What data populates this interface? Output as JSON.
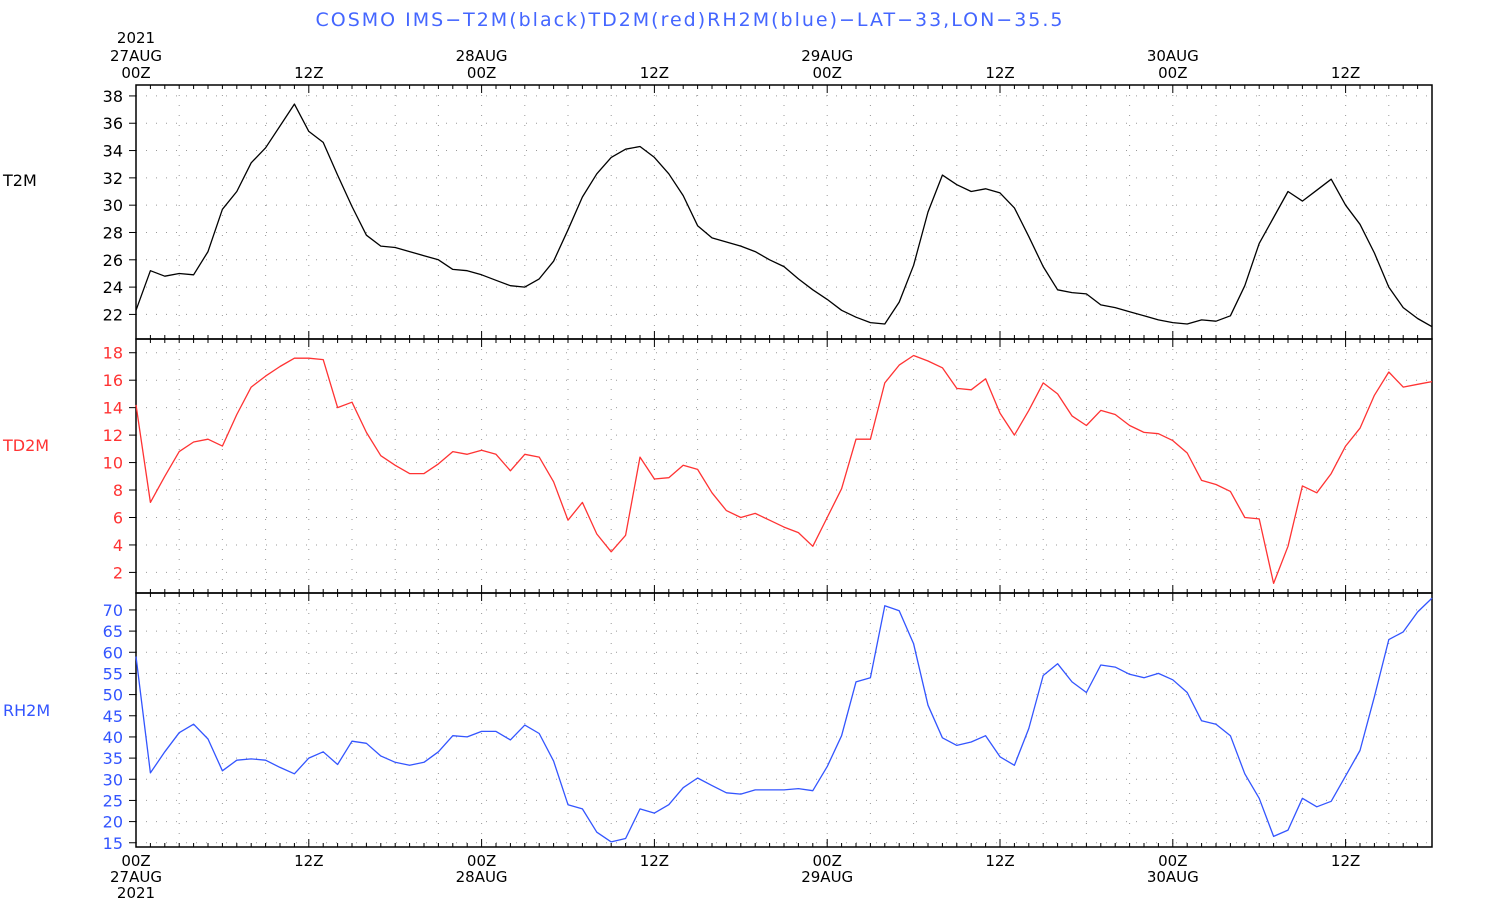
{
  "title": "COSMO IMS−T2M(black)TD2M(red)RH2M(blue)−LAT−33,LON−35.5",
  "colors": {
    "t2m": "#000000",
    "td2m": "#ff3333",
    "rh2m": "#3355ff",
    "title": "#4466ff",
    "grid": "#999999"
  },
  "top_axis": {
    "year_label": "2021",
    "ticks": [
      {
        "x": 0,
        "day": "27AUG",
        "hour": "00Z"
      },
      {
        "x": 12,
        "day": "",
        "hour": "12Z"
      },
      {
        "x": 24,
        "day": "28AUG",
        "hour": "00Z"
      },
      {
        "x": 36,
        "day": "",
        "hour": "12Z"
      },
      {
        "x": 48,
        "day": "29AUG",
        "hour": "00Z"
      },
      {
        "x": 60,
        "day": "",
        "hour": "12Z"
      },
      {
        "x": 72,
        "day": "30AUG",
        "hour": "00Z"
      },
      {
        "x": 84,
        "day": "",
        "hour": "12Z"
      }
    ]
  },
  "bottom_axis": {
    "year_label": "2021",
    "ticks": [
      {
        "x": 0,
        "hour": "00Z",
        "day": "27AUG"
      },
      {
        "x": 12,
        "hour": "12Z",
        "day": ""
      },
      {
        "x": 24,
        "hour": "00Z",
        "day": "28AUG"
      },
      {
        "x": 36,
        "hour": "12Z",
        "day": ""
      },
      {
        "x": 48,
        "hour": "00Z",
        "day": "29AUG"
      },
      {
        "x": 60,
        "hour": "12Z",
        "day": ""
      },
      {
        "x": 72,
        "hour": "00Z",
        "day": "30AUG"
      },
      {
        "x": 84,
        "hour": "12Z",
        "day": ""
      }
    ]
  },
  "chart_data": [
    {
      "type": "line",
      "name": "T2M",
      "ylabel": "T2M",
      "color": "#000000",
      "xlim": [
        0,
        90
      ],
      "ylim": [
        20.2,
        38.8
      ],
      "yticks": [
        22,
        24,
        26,
        28,
        30,
        32,
        34,
        36,
        38
      ],
      "grid": true,
      "x": [
        0,
        1,
        2,
        3,
        4,
        5,
        6,
        7,
        8,
        9,
        10,
        11,
        12,
        13,
        14,
        15,
        16,
        17,
        18,
        19,
        20,
        21,
        22,
        23,
        24,
        25,
        26,
        27,
        28,
        29,
        30,
        31,
        32,
        33,
        34,
        35,
        36,
        37,
        38,
        39,
        40,
        41,
        42,
        43,
        44,
        45,
        46,
        47,
        48,
        49,
        50,
        51,
        52,
        53,
        54,
        55,
        56,
        57,
        58,
        59,
        60,
        61,
        62,
        63,
        64,
        65,
        66,
        67,
        68,
        69,
        70,
        71,
        72,
        73,
        74,
        75,
        76,
        77,
        78,
        79,
        80,
        81,
        82,
        83,
        84,
        85,
        86,
        87,
        88,
        89,
        90
      ],
      "values": [
        22.3,
        25.2,
        24.8,
        25.0,
        24.9,
        26.6,
        29.7,
        31.0,
        33.1,
        34.2,
        35.8,
        37.4,
        35.4,
        34.6,
        32.2,
        29.9,
        27.8,
        27.0,
        26.9,
        26.6,
        26.3,
        26.0,
        25.3,
        25.2,
        24.9,
        24.5,
        24.1,
        24.0,
        24.6,
        25.9,
        28.2,
        30.6,
        32.3,
        33.5,
        34.1,
        34.3,
        33.5,
        32.3,
        30.7,
        28.5,
        27.6,
        27.3,
        27.0,
        26.6,
        26.0,
        25.5,
        24.6,
        23.8,
        23.1,
        22.3,
        21.8,
        21.4,
        21.3,
        22.9,
        25.6,
        29.5,
        32.2,
        31.5,
        31.0,
        31.2,
        30.9,
        29.8,
        27.7,
        25.5,
        23.8,
        23.6,
        23.5,
        22.7,
        22.5,
        22.2,
        21.9,
        21.6,
        21.4,
        21.3,
        21.6,
        21.5,
        21.9,
        24.1,
        27.2,
        29.1,
        31.0,
        30.3,
        31.1,
        31.9,
        30.0,
        28.6,
        26.5,
        24.0,
        22.5,
        21.7,
        21.1
      ]
    },
    {
      "type": "line",
      "name": "TD2M",
      "ylabel": "TD2M",
      "color": "#ff3333",
      "xlim": [
        0,
        90
      ],
      "ylim": [
        0.5,
        19.0
      ],
      "yticks": [
        2,
        4,
        6,
        8,
        10,
        12,
        14,
        16,
        18
      ],
      "grid": true,
      "x": [
        0,
        1,
        2,
        3,
        4,
        5,
        6,
        7,
        8,
        9,
        10,
        11,
        12,
        13,
        14,
        15,
        16,
        17,
        18,
        19,
        20,
        21,
        22,
        23,
        24,
        25,
        26,
        27,
        28,
        29,
        30,
        31,
        32,
        33,
        34,
        35,
        36,
        37,
        38,
        39,
        40,
        41,
        42,
        43,
        44,
        45,
        46,
        47,
        48,
        49,
        50,
        51,
        52,
        53,
        54,
        55,
        56,
        57,
        58,
        59,
        60,
        61,
        62,
        63,
        64,
        65,
        66,
        67,
        68,
        69,
        70,
        71,
        72,
        73,
        74,
        75,
        76,
        77,
        78,
        79,
        80,
        81,
        82,
        83,
        84,
        85,
        86,
        87,
        88,
        89,
        90
      ],
      "values": [
        14.2,
        7.1,
        9.0,
        10.8,
        11.5,
        11.7,
        11.2,
        13.5,
        15.5,
        16.3,
        17.0,
        17.6,
        17.6,
        17.5,
        14.0,
        14.4,
        12.2,
        10.5,
        9.8,
        9.2,
        9.2,
        9.9,
        10.8,
        10.6,
        10.9,
        10.6,
        9.4,
        10.6,
        10.4,
        8.6,
        5.8,
        7.1,
        4.8,
        3.5,
        4.7,
        10.4,
        8.8,
        8.9,
        9.8,
        9.5,
        7.8,
        6.5,
        6.0,
        6.3,
        5.8,
        5.3,
        4.9,
        3.9,
        6.0,
        8.1,
        11.7,
        11.7,
        15.8,
        17.1,
        17.8,
        17.4,
        16.9,
        15.4,
        15.3,
        16.1,
        13.6,
        12.0,
        13.8,
        15.8,
        15.0,
        13.4,
        12.7,
        13.8,
        13.5,
        12.7,
        12.2,
        12.1,
        11.6,
        10.7,
        8.7,
        8.4,
        7.9,
        6.0,
        5.9,
        1.2,
        3.9,
        8.3,
        7.8,
        9.2,
        11.2,
        12.5,
        14.9,
        16.6,
        15.5,
        15.7,
        15.9
      ]
    },
    {
      "type": "line",
      "name": "RH2M",
      "ylabel": "RH2M",
      "color": "#3355ff",
      "xlim": [
        0,
        90
      ],
      "ylim": [
        14.0,
        74.0
      ],
      "yticks": [
        15,
        20,
        25,
        30,
        35,
        40,
        45,
        50,
        55,
        60,
        65,
        70
      ],
      "grid": true,
      "x": [
        0,
        1,
        2,
        3,
        4,
        5,
        6,
        7,
        8,
        9,
        10,
        11,
        12,
        13,
        14,
        15,
        16,
        17,
        18,
        19,
        20,
        21,
        22,
        23,
        24,
        25,
        26,
        27,
        28,
        29,
        30,
        31,
        32,
        33,
        34,
        35,
        36,
        37,
        38,
        39,
        40,
        41,
        42,
        43,
        44,
        45,
        46,
        47,
        48,
        49,
        50,
        51,
        52,
        53,
        54,
        55,
        56,
        57,
        58,
        59,
        60,
        61,
        62,
        63,
        64,
        65,
        66,
        67,
        68,
        69,
        70,
        71,
        72,
        73,
        74,
        75,
        76,
        77,
        78,
        79,
        80,
        81,
        82,
        83,
        84,
        85,
        86,
        87,
        88,
        89,
        90
      ],
      "values": [
        59.0,
        31.5,
        36.5,
        41.0,
        43.0,
        39.5,
        32.0,
        34.5,
        34.8,
        34.5,
        32.8,
        31.3,
        35.0,
        36.5,
        33.5,
        39.0,
        38.5,
        35.5,
        34.0,
        33.3,
        34.0,
        36.5,
        40.3,
        40.0,
        41.3,
        41.3,
        39.3,
        42.8,
        40.8,
        34.3,
        24.0,
        23.0,
        17.5,
        15.2,
        16.0,
        23.0,
        22.0,
        24.0,
        28.0,
        30.3,
        28.5,
        26.8,
        26.5,
        27.5,
        27.5,
        27.5,
        27.8,
        27.3,
        33.0,
        40.3,
        53.0,
        54.0,
        71.0,
        69.8,
        62.0,
        47.5,
        39.8,
        38.0,
        38.8,
        40.3,
        35.3,
        33.3,
        42.0,
        54.5,
        57.3,
        53.0,
        50.5,
        57.0,
        56.5,
        54.8,
        54.0,
        55.0,
        53.5,
        50.5,
        43.8,
        43.0,
        40.3,
        31.3,
        25.5,
        16.5,
        18.0,
        25.5,
        23.5,
        24.8,
        30.8,
        36.8,
        49.5,
        63.0,
        64.8,
        69.5,
        72.8
      ]
    }
  ]
}
